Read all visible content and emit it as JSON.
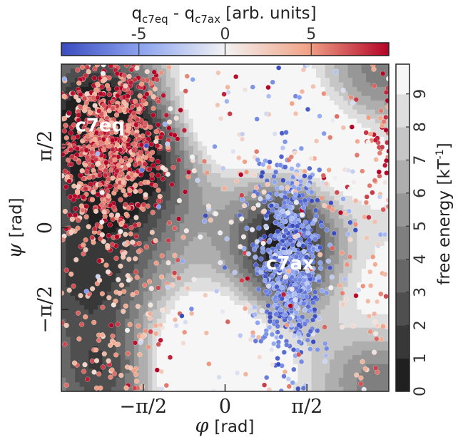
{
  "chart_data": {
    "type": "scatter",
    "xlabel_symbol": "φ",
    "xlabel_unit": "[rad]",
    "ylabel_symbol": "ψ",
    "ylabel_unit": "[rad]",
    "xlim": [
      -3.14159,
      3.14159
    ],
    "ylim": [
      -3.14159,
      3.14159
    ],
    "x_ticks": [
      {
        "value": -1.5708,
        "label": "−π/2"
      },
      {
        "value": 0,
        "label": "0"
      },
      {
        "value": 1.5708,
        "label": "π/2"
      }
    ],
    "y_ticks": [
      {
        "value": 1.5708,
        "label": "π/2"
      },
      {
        "value": 0,
        "label": "0"
      },
      {
        "value": -1.5708,
        "label": "−π/2"
      }
    ],
    "grid": false,
    "background": {
      "type": "filled-contour",
      "colormap": "greys",
      "range": [
        0,
        9.9
      ],
      "colorbar_label": "free energy [kT",
      "colorbar_label_sup": "-1",
      "colorbar_label_end": "]",
      "colorbar_ticks": [
        "0",
        "1",
        "2",
        "3",
        "4",
        "5",
        "6",
        "7",
        "8",
        "9"
      ],
      "wells": [
        {
          "x": -2.5,
          "y": 2.2,
          "height": 7.5,
          "width": 1.0
        },
        {
          "x": -1.7,
          "y": 1.2,
          "height": 6.0,
          "width": 0.9
        },
        {
          "x": -2.6,
          "y": -0.8,
          "height": 6.5,
          "width": 1.1
        },
        {
          "x": 1.2,
          "y": -0.7,
          "height": 7.0,
          "width": 0.8
        },
        {
          "x": 1.15,
          "y": 0.3,
          "height": 4.0,
          "width": 0.7
        },
        {
          "x": -2.3,
          "y": -2.9,
          "height": 5.5,
          "width": 0.8
        },
        {
          "x": 2.9,
          "y": 2.9,
          "height": 4.0,
          "width": 0.7
        },
        {
          "x": 2.9,
          "y": -2.9,
          "height": 4.0,
          "width": 0.7
        }
      ],
      "barriers": [
        {
          "x": 0.2,
          "y": 2.4,
          "height": 7.0,
          "width": 0.9
        },
        {
          "x": -0.3,
          "y": -2.5,
          "height": 7.5,
          "width": 0.9
        },
        {
          "x": 2.1,
          "y": 1.4,
          "height": 3.5,
          "width": 0.8
        },
        {
          "x": 2.6,
          "y": -1.2,
          "height": 2.5,
          "width": 0.8
        }
      ]
    },
    "color_variable": {
      "label_main": "q",
      "label_sub1": "c7eq",
      "label_mid": " - q",
      "label_sub2": "c7ax",
      "label_unit": " [arb. units]",
      "range": [
        -9.5,
        9.5
      ],
      "ticks": [
        "-5",
        "0",
        "5"
      ],
      "colormap": "coolwarm"
    },
    "series": [
      {
        "name": "c7eq",
        "center": {
          "x": -2.2,
          "y": 1.6
        },
        "spread": {
          "x": 0.55,
          "y": 0.85
        },
        "charge": 7.0,
        "count": 900
      },
      {
        "name": "c7ax",
        "center": {
          "x": 1.25,
          "y": -0.7
        },
        "spread": {
          "x": 0.28,
          "y": 0.9
        },
        "charge": -6.5,
        "count": 700
      },
      {
        "name": "scatter-bg-red",
        "center": {
          "x": -2.3,
          "y": -1.2
        },
        "spread": {
          "x": 0.9,
          "y": 1.4
        },
        "charge": 4.0,
        "count": 260
      },
      {
        "name": "scatter-bg-mixed",
        "center": {
          "x": 0.9,
          "y": 0.6
        },
        "spread": {
          "x": 1.3,
          "y": 1.6
        },
        "charge": 0.0,
        "count": 260
      }
    ],
    "annotations": [
      {
        "text": "c7eq",
        "x": -2.4,
        "y": 1.95
      },
      {
        "text": "c7ax",
        "x": 1.25,
        "y": -0.7
      }
    ]
  }
}
